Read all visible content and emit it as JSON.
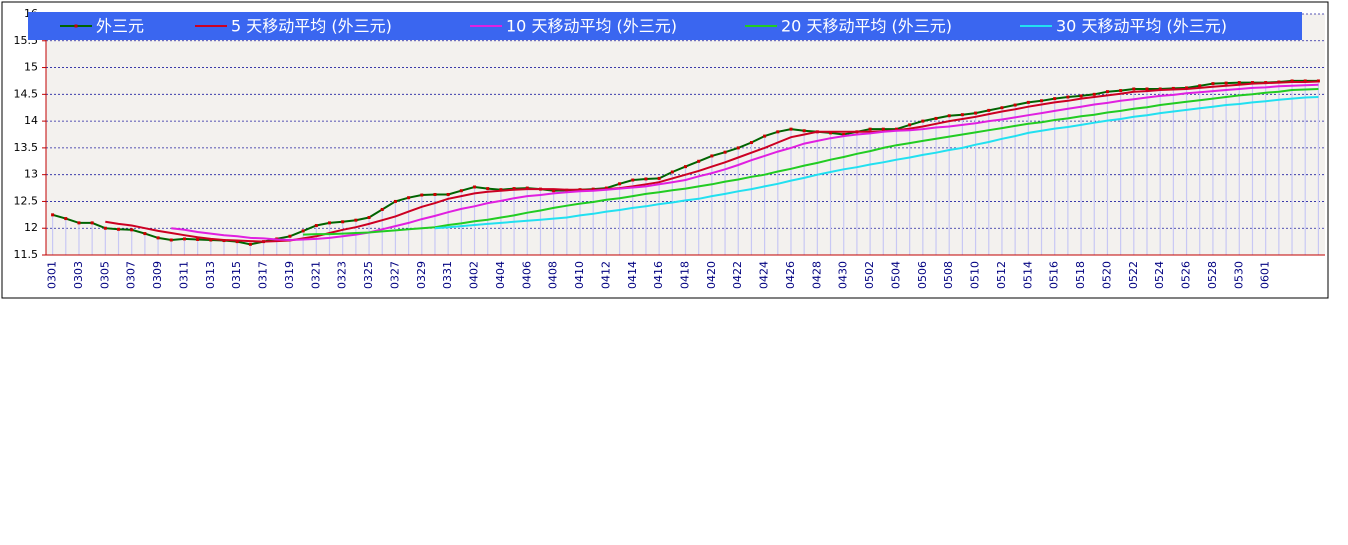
{
  "chart_data": {
    "type": "line",
    "categories": [
      "0301",
      null,
      "0303",
      null,
      "0305",
      null,
      "0307",
      null,
      "0309",
      null,
      "0311",
      null,
      "0313",
      null,
      "0315",
      null,
      "0317",
      null,
      "0319",
      null,
      "0321",
      null,
      "0323",
      null,
      "0325",
      null,
      "0327",
      null,
      "0329",
      null,
      "0331",
      null,
      "0402",
      null,
      "0404",
      null,
      "0406",
      null,
      "0408",
      null,
      "0410",
      null,
      "0412",
      null,
      "0414",
      null,
      "0416",
      null,
      "0418",
      null,
      "0420",
      null,
      "0422",
      null,
      "0424",
      null,
      "0426",
      null,
      "0428",
      null,
      "0430",
      null,
      "0502",
      null,
      "0504",
      null,
      "0506",
      null,
      "0508",
      null,
      "0510",
      null,
      "0512",
      null,
      "0514",
      null,
      "0516",
      null,
      "0518",
      null,
      "0520",
      null,
      "0522",
      null,
      "0524",
      null,
      "0526",
      null,
      "0528",
      null,
      "0530",
      null,
      "0601",
      null,
      null,
      null,
      null
    ],
    "series": [
      {
        "name": "外三元",
        "color": "#006400",
        "marker_color": "#cc0000",
        "values": [
          12.25,
          12.18,
          12.1,
          12.1,
          12.0,
          11.98,
          11.97,
          11.9,
          11.82,
          11.78,
          11.8,
          11.79,
          11.78,
          11.77,
          11.75,
          11.7,
          11.75,
          11.8,
          11.85,
          11.95,
          12.05,
          12.1,
          12.12,
          12.15,
          12.2,
          12.35,
          12.5,
          12.57,
          12.62,
          12.63,
          12.63,
          12.7,
          12.77,
          12.74,
          12.72,
          12.74,
          12.75,
          12.73,
          12.7,
          12.71,
          12.72,
          12.73,
          12.75,
          12.83,
          12.9,
          12.92,
          12.93,
          13.05,
          13.15,
          13.25,
          13.35,
          13.42,
          13.5,
          13.6,
          13.72,
          13.8,
          13.85,
          13.82,
          13.8,
          13.78,
          13.75,
          13.8,
          13.85,
          13.85,
          13.85,
          13.93,
          14.0,
          14.05,
          14.1,
          14.12,
          14.15,
          14.2,
          14.25,
          14.3,
          14.35,
          14.38,
          14.42,
          14.45,
          14.47,
          14.5,
          14.55,
          14.57,
          14.6,
          14.6,
          14.6,
          14.61,
          14.62,
          14.66,
          14.7,
          14.71,
          14.72,
          14.72,
          14.72,
          14.73,
          14.75,
          14.75,
          14.75
        ]
      },
      {
        "name": "5 天移动平均 (外三元)",
        "color": "#cc0022",
        "values": [
          null,
          null,
          null,
          null,
          12.12,
          12.08,
          12.05,
          12.0,
          11.95,
          11.91,
          11.87,
          11.83,
          11.8,
          11.78,
          11.77,
          11.76,
          11.75,
          11.76,
          11.77,
          11.81,
          11.85,
          11.91,
          11.97,
          12.02,
          12.08,
          12.15,
          12.22,
          12.31,
          12.4,
          12.47,
          12.55,
          12.6,
          12.65,
          12.68,
          12.7,
          12.72,
          12.73,
          12.73,
          12.73,
          12.72,
          12.72,
          12.72,
          12.73,
          12.75,
          12.78,
          12.82,
          12.86,
          12.93,
          13.0,
          13.07,
          13.15,
          13.23,
          13.32,
          13.41,
          13.5,
          13.6,
          13.7,
          13.75,
          13.8,
          13.8,
          13.8,
          13.8,
          13.8,
          13.81,
          13.83,
          13.86,
          13.9,
          13.95,
          14.0,
          14.04,
          14.08,
          14.13,
          14.18,
          14.22,
          14.27,
          14.31,
          14.35,
          14.38,
          14.42,
          14.45,
          14.48,
          14.51,
          14.55,
          14.56,
          14.58,
          14.59,
          14.6,
          14.62,
          14.64,
          14.66,
          14.68,
          14.7,
          14.71,
          14.72,
          14.73,
          14.73,
          14.74
        ]
      },
      {
        "name": "10 天移动平均 (外三元)",
        "color": "#e020e0",
        "values": [
          null,
          null,
          null,
          null,
          null,
          null,
          null,
          null,
          null,
          12.0,
          11.97,
          11.93,
          11.9,
          11.87,
          11.85,
          11.82,
          11.81,
          11.79,
          11.78,
          11.79,
          11.8,
          11.82,
          11.85,
          11.88,
          11.92,
          11.98,
          12.04,
          12.1,
          12.17,
          12.23,
          12.3,
          12.36,
          12.41,
          12.47,
          12.51,
          12.56,
          12.6,
          12.62,
          12.65,
          12.67,
          12.69,
          12.7,
          12.72,
          12.74,
          12.76,
          12.78,
          12.82,
          12.86,
          12.9,
          12.97,
          13.03,
          13.1,
          13.18,
          13.27,
          13.35,
          13.43,
          13.5,
          13.58,
          13.63,
          13.68,
          13.72,
          13.75,
          13.77,
          13.8,
          13.82,
          13.83,
          13.85,
          13.88,
          13.9,
          13.93,
          13.96,
          14.0,
          14.03,
          14.07,
          14.11,
          14.15,
          14.19,
          14.23,
          14.27,
          14.31,
          14.34,
          14.38,
          14.41,
          14.44,
          14.47,
          14.49,
          14.52,
          14.54,
          14.56,
          14.58,
          14.6,
          14.62,
          14.63,
          14.65,
          14.66,
          14.67,
          14.68
        ]
      },
      {
        "name": "20 天移动平均 (外三元)",
        "color": "#22cc22",
        "values": [
          null,
          null,
          null,
          null,
          null,
          null,
          null,
          null,
          null,
          null,
          null,
          null,
          null,
          null,
          null,
          null,
          null,
          null,
          null,
          11.88,
          11.89,
          11.89,
          11.9,
          11.91,
          11.92,
          11.94,
          11.96,
          11.98,
          12.0,
          12.02,
          12.06,
          12.09,
          12.13,
          12.16,
          12.2,
          12.24,
          12.29,
          12.33,
          12.38,
          12.42,
          12.46,
          12.49,
          12.53,
          12.56,
          12.6,
          12.64,
          12.67,
          12.71,
          12.74,
          12.78,
          12.82,
          12.87,
          12.91,
          12.96,
          13.0,
          13.06,
          13.11,
          13.17,
          13.22,
          13.28,
          13.33,
          13.39,
          13.44,
          13.5,
          13.55,
          13.59,
          13.63,
          13.67,
          13.71,
          13.75,
          13.79,
          13.83,
          13.87,
          13.91,
          13.95,
          13.98,
          14.02,
          14.05,
          14.09,
          14.12,
          14.16,
          14.19,
          14.23,
          14.26,
          14.3,
          14.33,
          14.36,
          14.39,
          14.42,
          14.45,
          14.48,
          14.5,
          14.53,
          14.55,
          14.58,
          14.59,
          14.6
        ]
      },
      {
        "name": "30 天移动平均 (外三元)",
        "color": "#22e0f0",
        "values": [
          null,
          null,
          null,
          null,
          null,
          null,
          null,
          null,
          null,
          null,
          null,
          null,
          null,
          null,
          null,
          null,
          null,
          null,
          null,
          null,
          null,
          null,
          null,
          null,
          null,
          null,
          null,
          null,
          null,
          12.0,
          12.02,
          12.04,
          12.06,
          12.08,
          12.1,
          12.12,
          12.14,
          12.16,
          12.18,
          12.2,
          12.24,
          12.27,
          12.31,
          12.34,
          12.38,
          12.41,
          12.45,
          12.48,
          12.52,
          12.55,
          12.6,
          12.64,
          12.69,
          12.73,
          12.78,
          12.83,
          12.89,
          12.94,
          13.0,
          13.05,
          13.1,
          13.14,
          13.19,
          13.23,
          13.28,
          13.32,
          13.37,
          13.41,
          13.46,
          13.5,
          13.56,
          13.61,
          13.67,
          13.72,
          13.78,
          13.82,
          13.86,
          13.89,
          13.93,
          13.97,
          14.01,
          14.04,
          14.08,
          14.11,
          14.15,
          14.18,
          14.21,
          14.24,
          14.27,
          14.3,
          14.32,
          14.35,
          14.37,
          14.4,
          14.42,
          14.44,
          14.45
        ]
      }
    ],
    "ylim": [
      11.5,
      16
    ],
    "yticks": [
      11.5,
      12,
      12.5,
      13,
      13.5,
      14,
      14.5,
      15,
      15.5,
      16
    ],
    "grid": true,
    "legend": "top",
    "drop_lines": true,
    "drop_line_color": "#c8c8f4"
  }
}
